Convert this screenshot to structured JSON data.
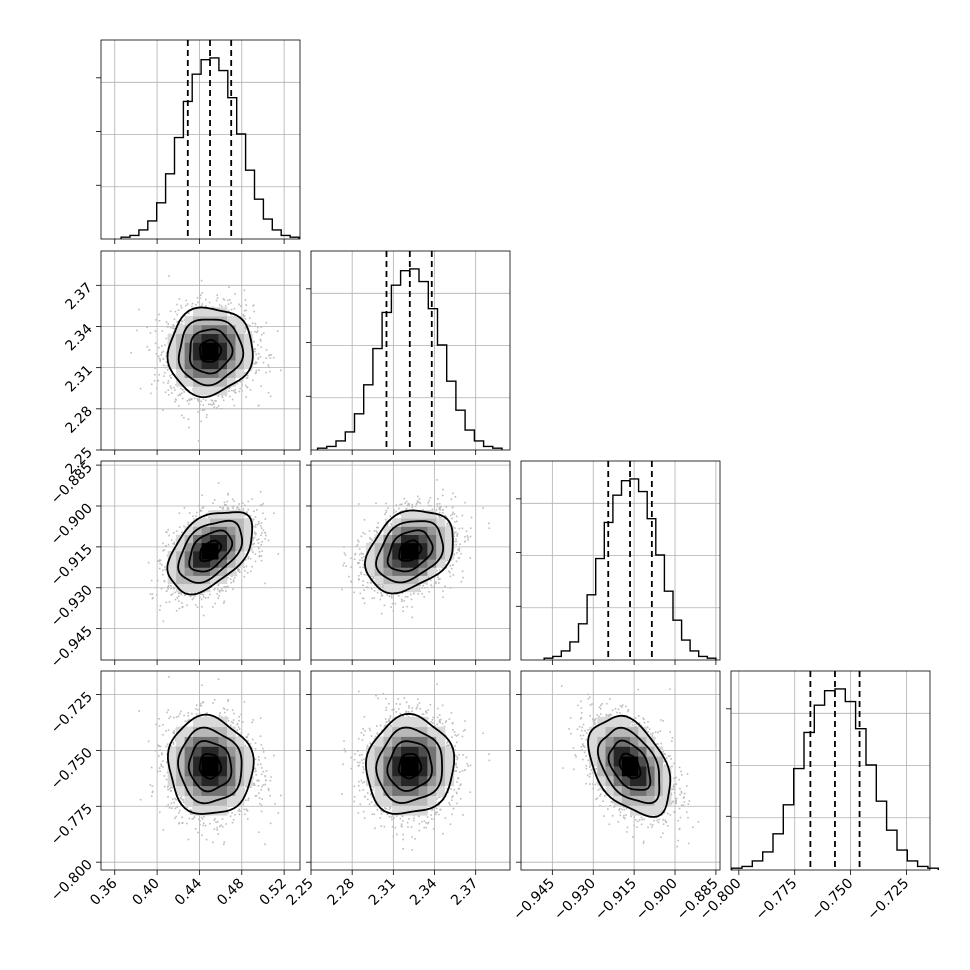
{
  "chart_data": {
    "type": "corner",
    "parameters": [
      {
        "index": 0,
        "mean": 0.45,
        "sigma": 0.02,
        "range": [
          0.347,
          0.535
        ],
        "ticks": [
          "0.36",
          "0.40",
          "0.44",
          "0.48",
          "0.52"
        ],
        "tick_values": [
          0.36,
          0.4,
          0.44,
          0.48,
          0.52
        ],
        "quantiles": [
          0.429,
          0.45,
          0.47
        ]
      },
      {
        "index": 1,
        "mean": 2.322,
        "sigma": 0.016,
        "range": [
          2.25,
          2.395
        ],
        "ticks": [
          "2.25",
          "2.28",
          "2.31",
          "2.34",
          "2.37"
        ],
        "tick_values": [
          2.25,
          2.28,
          2.31,
          2.34,
          2.37
        ],
        "quantiles": [
          2.305,
          2.322,
          2.338
        ]
      },
      {
        "index": 2,
        "mean": -0.9165,
        "sigma": 0.0075,
        "range": [
          -0.9565,
          -0.8835
        ],
        "ticks": [
          "−0.945",
          "−0.930",
          "−0.915",
          "−0.900",
          "−0.885"
        ],
        "tick_values": [
          -0.945,
          -0.93,
          -0.915,
          -0.9,
          -0.885
        ],
        "quantiles": [
          -0.9245,
          -0.9165,
          -0.9085
        ]
      },
      {
        "index": 3,
        "mean": -0.757,
        "sigma": 0.011,
        "range": [
          -0.8035,
          -0.7145
        ],
        "ticks": [
          "−0.800",
          "−0.775",
          "−0.750",
          "−0.725"
        ],
        "tick_values": [
          -0.8,
          -0.775,
          -0.75,
          -0.725
        ],
        "quantiles": [
          -0.768,
          -0.757,
          -0.746
        ]
      }
    ],
    "histogram": {
      "bins": 20,
      "shape": [
        0.01,
        0.02,
        0.05,
        0.1,
        0.2,
        0.36,
        0.56,
        0.76,
        0.91,
        0.99,
        1.0,
        0.93,
        0.78,
        0.58,
        0.38,
        0.22,
        0.11,
        0.05,
        0.02,
        0.01
      ]
    },
    "correlations": [
      {
        "pair": [
          1,
          0
        ],
        "rho": 0.05
      },
      {
        "pair": [
          2,
          0
        ],
        "rho": 0.45
      },
      {
        "pair": [
          2,
          1
        ],
        "rho": 0.3
      },
      {
        "pair": [
          3,
          0
        ],
        "rho": -0.05
      },
      {
        "pair": [
          3,
          1
        ],
        "rho": 0.05
      },
      {
        "pair": [
          3,
          2
        ],
        "rho": -0.4
      }
    ],
    "contour_levels_sigma": [
      0.5,
      1.0,
      1.5,
      2.0
    ],
    "density_colormap": [
      "#f4f4f4",
      "#d9d9d9",
      "#b8b8b8",
      "#969696",
      "#737373",
      "#4d4d4d",
      "#262626",
      "#000000"
    ],
    "grid": true,
    "line_color": "#000000",
    "point_color": "#bdbdbd"
  }
}
